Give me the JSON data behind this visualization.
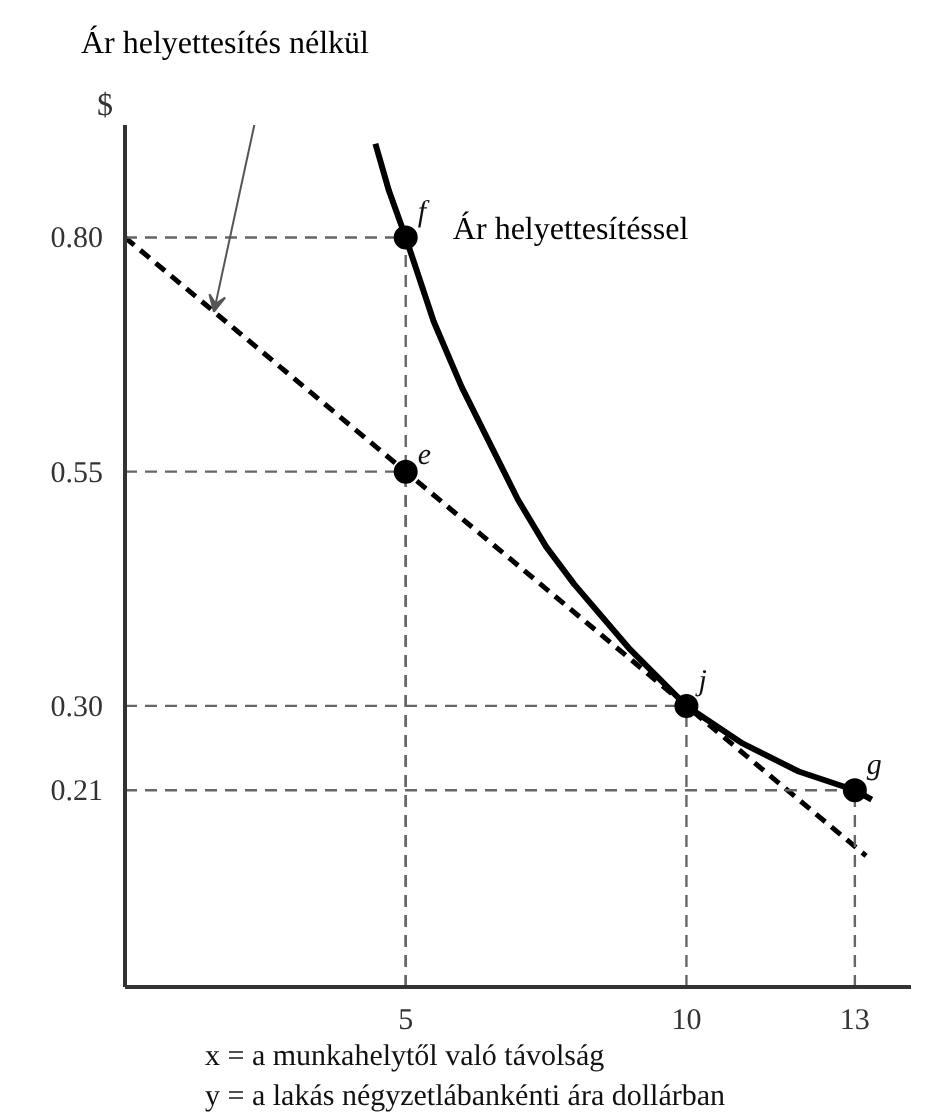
{
  "chart_data": {
    "type": "line",
    "ylabel": "$",
    "xlim": [
      0,
      14
    ],
    "ylim": [
      0,
      0.92
    ],
    "xticks": [
      5,
      10,
      13
    ],
    "yticks": [
      {
        "value": 0.21,
        "label": "0.21"
      },
      {
        "value": 0.3,
        "label": "0.30"
      },
      {
        "value": 0.55,
        "label": "0.55"
      },
      {
        "value": 0.8,
        "label": "0.80"
      }
    ],
    "grid": true,
    "series": [
      {
        "name": "Ár helyettesítés nélkül",
        "line_style": "dashed",
        "color": "#000000",
        "x": [
          0,
          13.2
        ],
        "values": [
          0.8,
          0.14
        ]
      },
      {
        "name": "Ár helyettesítéssel",
        "line_style": "solid",
        "color": "#000000",
        "x": [
          4.46,
          4.7,
          5,
          5.5,
          6,
          6.5,
          7,
          7.5,
          8,
          9,
          10,
          11,
          12,
          13,
          13.3
        ],
        "values": [
          0.9,
          0.85,
          0.8,
          0.71,
          0.64,
          0.58,
          0.52,
          0.47,
          0.43,
          0.36,
          0.3,
          0.26,
          0.23,
          0.21,
          0.2
        ]
      },
      {
        "type": "scatter",
        "marker": "circle",
        "color": "#000000",
        "x": [
          5,
          5,
          10,
          13
        ],
        "values": [
          0.8,
          0.55,
          0.3,
          0.21
        ]
      }
    ],
    "annotations": [
      {
        "text": "f",
        "x": 5,
        "y": 0.8
      },
      {
        "text": "e",
        "x": 5,
        "y": 0.55
      },
      {
        "text": "j",
        "x": 10,
        "y": 0.3
      },
      {
        "text": "g",
        "x": 13,
        "y": 0.21
      },
      "x = a munkahelytől való távolság",
      "y = a lakás négyzetlábankénti ára dollárban"
    ]
  }
}
